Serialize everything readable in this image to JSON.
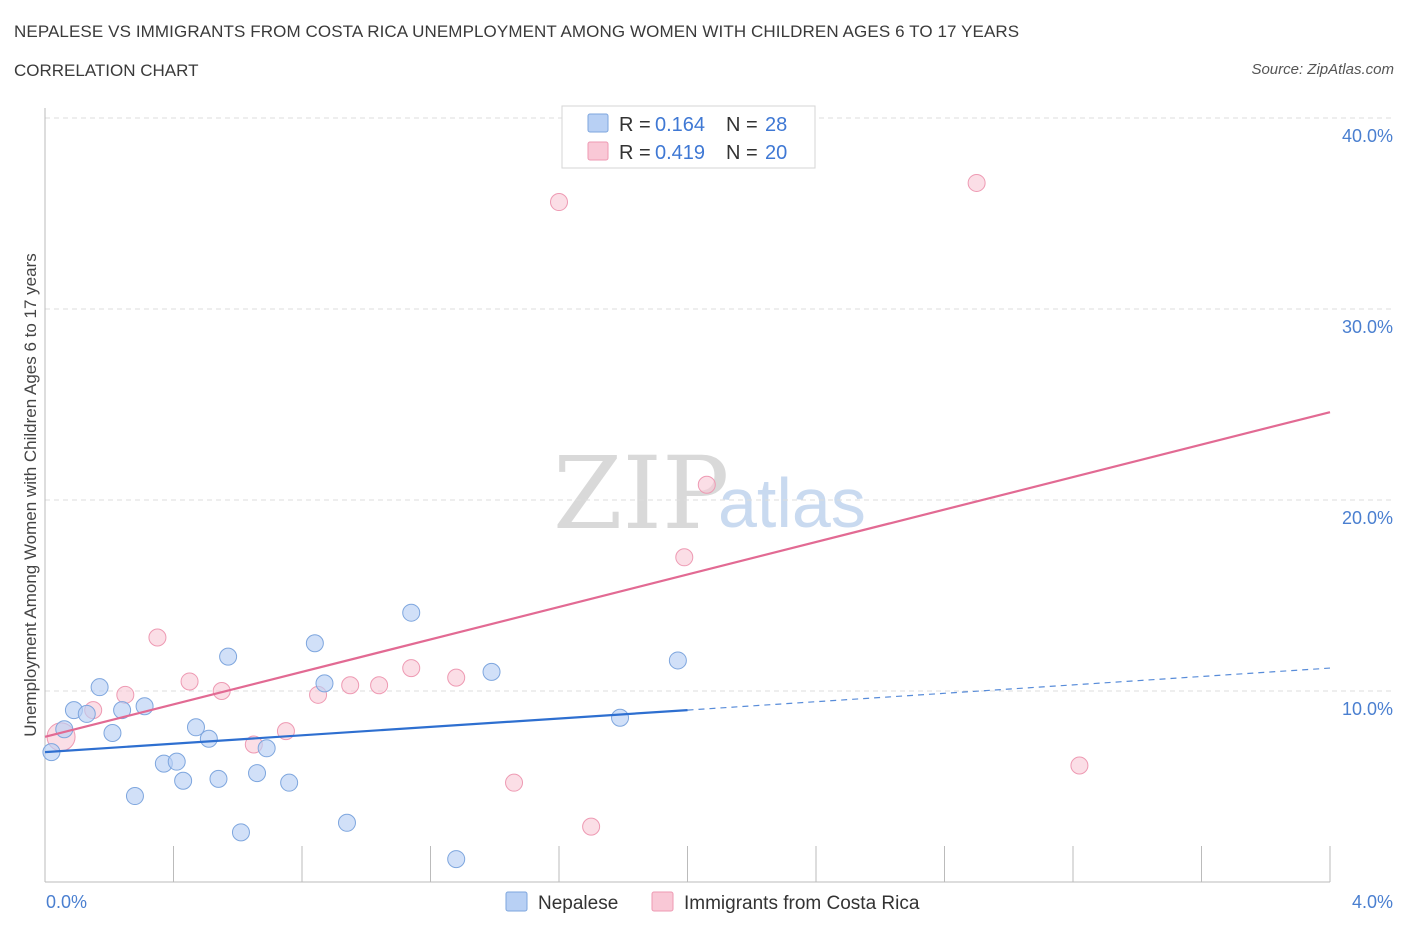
{
  "header": {
    "title": "NEPALESE VS IMMIGRANTS FROM COSTA RICA UNEMPLOYMENT AMONG WOMEN WITH CHILDREN AGES 6 TO 17 YEARS",
    "subtitle": "CORRELATION CHART",
    "source": "Source: ZipAtlas.com"
  },
  "watermark": {
    "zip": "ZIP",
    "atlas": "atlas"
  },
  "legend": {
    "rows": [
      {
        "r_label": "R = ",
        "r_value": "0.164",
        "n_label": "N = ",
        "n_value": "28"
      },
      {
        "r_label": "R = ",
        "r_value": "0.419",
        "n_label": "N = ",
        "n_value": "20"
      }
    ]
  },
  "colors": {
    "nepalese_fill": "#b8d0f4",
    "nepalese_stroke": "#7ea6de",
    "nepalese_line": "#2e6fd0",
    "costa_fill": "#f9c8d6",
    "costa_stroke": "#ee9ab3",
    "costa_line": "#e26a93",
    "tick_color": "#4a7fd0"
  },
  "chart_data": {
    "type": "scatter",
    "title": "NEPALESE VS IMMIGRANTS FROM COSTA RICA UNEMPLOYMENT AMONG WOMEN WITH CHILDREN AGES 6 TO 17 YEARS",
    "xlabel": "",
    "ylabel": "Unemployment Among Women with Children Ages 6 to 17 years",
    "xlim": [
      0,
      4
    ],
    "ylim": [
      0,
      40
    ],
    "x_tick_labels": [
      "0.0%",
      "4.0%"
    ],
    "y_ticks": [
      10,
      20,
      30,
      40
    ],
    "y_tick_labels": [
      "10.0%",
      "20.0%",
      "30.0%",
      "40.0%"
    ],
    "grid": true,
    "legend_position": "top-center",
    "series": [
      {
        "name": "Nepalese",
        "R": 0.164,
        "N": 28,
        "trend": {
          "x0": 0.0,
          "y0": 6.8,
          "x1": 2.0,
          "y1": 9.0,
          "dashed_to_x": 4.0,
          "dashed_to_y": 11.2
        },
        "points": [
          {
            "x": 0.02,
            "y": 6.8
          },
          {
            "x": 0.06,
            "y": 8.0
          },
          {
            "x": 0.09,
            "y": 9.0
          },
          {
            "x": 0.13,
            "y": 8.8
          },
          {
            "x": 0.17,
            "y": 10.2
          },
          {
            "x": 0.21,
            "y": 7.8
          },
          {
            "x": 0.24,
            "y": 9.0
          },
          {
            "x": 0.28,
            "y": 4.5
          },
          {
            "x": 0.31,
            "y": 9.2
          },
          {
            "x": 0.37,
            "y": 6.2
          },
          {
            "x": 0.41,
            "y": 6.3
          },
          {
            "x": 0.43,
            "y": 5.3
          },
          {
            "x": 0.47,
            "y": 8.1
          },
          {
            "x": 0.51,
            "y": 7.5
          },
          {
            "x": 0.54,
            "y": 5.4
          },
          {
            "x": 0.57,
            "y": 11.8
          },
          {
            "x": 0.61,
            "y": 2.6
          },
          {
            "x": 0.66,
            "y": 5.7
          },
          {
            "x": 0.69,
            "y": 7.0
          },
          {
            "x": 0.76,
            "y": 5.2
          },
          {
            "x": 0.84,
            "y": 12.5
          },
          {
            "x": 0.87,
            "y": 10.4
          },
          {
            "x": 0.94,
            "y": 3.1
          },
          {
            "x": 1.14,
            "y": 14.1
          },
          {
            "x": 1.28,
            "y": 1.2
          },
          {
            "x": 1.39,
            "y": 11.0
          },
          {
            "x": 1.79,
            "y": 8.6
          },
          {
            "x": 1.97,
            "y": 11.6
          }
        ]
      },
      {
        "name": "Immigrants from Costa Rica",
        "R": 0.419,
        "N": 20,
        "trend": {
          "x0": 0.0,
          "y0": 7.6,
          "x1": 4.0,
          "y1": 24.6
        },
        "points": [
          {
            "x": 0.05,
            "y": 7.6
          },
          {
            "x": 0.15,
            "y": 9.0
          },
          {
            "x": 0.25,
            "y": 9.8
          },
          {
            "x": 0.35,
            "y": 12.8
          },
          {
            "x": 0.45,
            "y": 10.5
          },
          {
            "x": 0.55,
            "y": 10.0
          },
          {
            "x": 0.65,
            "y": 7.2
          },
          {
            "x": 0.75,
            "y": 7.9
          },
          {
            "x": 0.85,
            "y": 9.8
          },
          {
            "x": 0.95,
            "y": 10.3
          },
          {
            "x": 1.04,
            "y": 10.3
          },
          {
            "x": 1.14,
            "y": 11.2
          },
          {
            "x": 1.28,
            "y": 10.7
          },
          {
            "x": 1.46,
            "y": 5.2
          },
          {
            "x": 1.6,
            "y": 35.6
          },
          {
            "x": 1.7,
            "y": 2.9
          },
          {
            "x": 1.99,
            "y": 17.0
          },
          {
            "x": 2.06,
            "y": 20.8
          },
          {
            "x": 2.9,
            "y": 36.6
          },
          {
            "x": 3.22,
            "y": 6.1
          }
        ]
      }
    ]
  }
}
